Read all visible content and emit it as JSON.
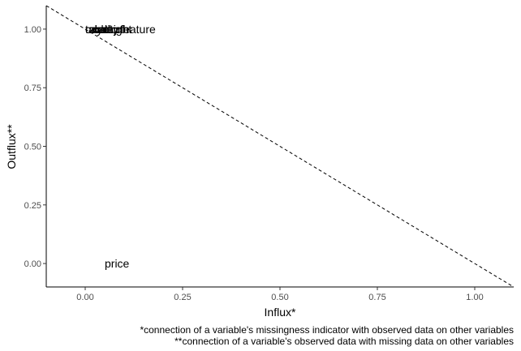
{
  "chart_data": {
    "type": "scatter",
    "title": "",
    "xlabel": "Influx*",
    "ylabel": "Outflux**",
    "xlim": [
      -0.1,
      1.1
    ],
    "ylim": [
      -0.1,
      1.1
    ],
    "x_ticks": [
      0.0,
      0.25,
      0.5,
      0.75,
      1.0
    ],
    "x_tick_labels": [
      "0.00",
      "0.25",
      "0.50",
      "0.75",
      "1.00"
    ],
    "y_ticks": [
      0.0,
      0.25,
      0.5,
      0.75,
      1.0
    ],
    "y_tick_labels": [
      "0.00",
      "0.25",
      "0.50",
      "0.75",
      "1.00"
    ],
    "grid": false,
    "reference_line": {
      "style": "dashed",
      "intercept": 1,
      "slope": -1
    },
    "points": [
      {
        "label": "price",
        "x": 0.05,
        "y": 0.0
      },
      {
        "label": "carat",
        "x": 0.0,
        "y": 1.0
      },
      {
        "label": "cut",
        "x": 0.02,
        "y": 1.0
      },
      {
        "label": "color",
        "x": 0.03,
        "y": 1.0
      },
      {
        "label": "clarity",
        "x": 0.01,
        "y": 1.0
      },
      {
        "label": "depth",
        "x": 0.04,
        "y": 1.0
      },
      {
        "label": "table",
        "x": 0.0,
        "y": 1.0
      },
      {
        "label": "x",
        "x": 0.02,
        "y": 1.0
      },
      {
        "label": "y",
        "x": 0.03,
        "y": 1.0
      },
      {
        "label": "z",
        "x": 0.01,
        "y": 1.0
      },
      {
        "label": "feature",
        "x": 0.09,
        "y": 1.0
      },
      {
        "label": "weight",
        "x": 0.035,
        "y": 1.0
      }
    ],
    "caption_lines": [
      "*connection of a variable's missingness indicator with observed data on other variables",
      "**connection of a variable's observed data with missing data on other variables"
    ]
  }
}
